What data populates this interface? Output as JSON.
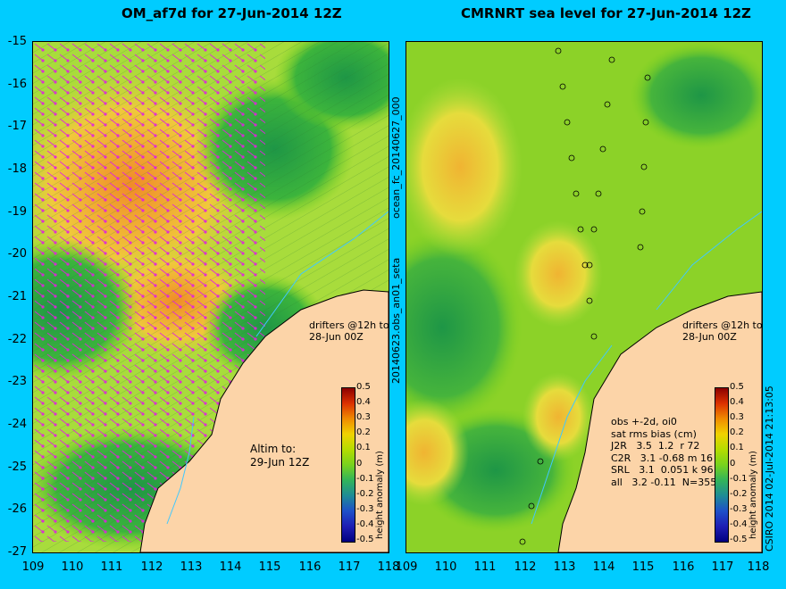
{
  "left_panel": {
    "title": "OM_af7d for 27-Jun-2014 12Z",
    "drifters_note": "drifters @12h to\n28-Jun 00Z",
    "altim_note": "Altim to:\n29-Jun 12Z",
    "colorbar_label": "height anomaly (m)"
  },
  "right_panel": {
    "title": "CMRNRT sea level  for 27-Jun-2014 12Z",
    "drifters_note": "drifters @12h to\n28-Jun 00Z",
    "stats_note": "obs +-2d, oi0\nsat rms bias (cm)\nJ2R   3.5  1.2  r 72\nC2R   3.1 -0.68 m 16\nSRL   3.1  0.051 k 96\nall   3.2 -0.11  N=355",
    "colorbar_label": "height anomaly (m)"
  },
  "vertical_label_left": "20140623.obs_an01_seta",
  "vertical_label_top": "ocean_fc_20140627_000",
  "vertical_label_right": "CSIRO 2014  02-Jul-2014 21:13:05",
  "y_ticks": [
    "-15",
    "-16",
    "-17",
    "-18",
    "-19",
    "-20",
    "-21",
    "-22",
    "-23",
    "-24",
    "-25",
    "-26",
    "-27"
  ],
  "x_ticks": [
    "109",
    "110",
    "111",
    "112",
    "113",
    "114",
    "115",
    "116",
    "117",
    "118"
  ],
  "colorbar_ticks": [
    "0.5",
    "0.4",
    "0.3",
    "0.2",
    "0.1",
    "0",
    "-0.1",
    "-0.2",
    "-0.3",
    "-0.4",
    "-0.5"
  ],
  "colors": {
    "background": "#00ccff",
    "land": "#fcd4a8",
    "positive_high": "#e0641e",
    "zero": "#7ed21e",
    "negative": "#1e9646",
    "vector": "#e020e0"
  }
}
